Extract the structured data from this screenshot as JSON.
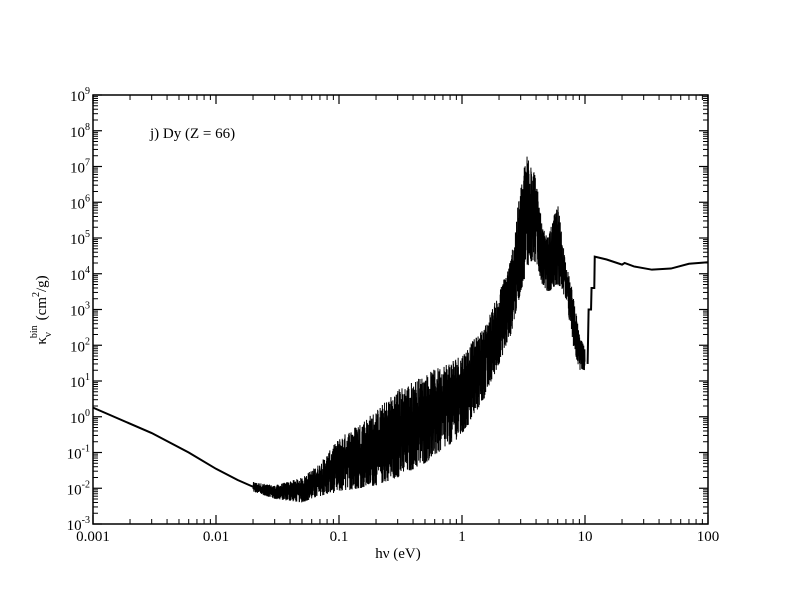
{
  "chart_data": {
    "type": "line",
    "annotation": "j) Dy (Z = 66)",
    "xlabel": "hν (eV)",
    "ylabel_main": "κ",
    "ylabel_sub": "ν",
    "ylabel_sup": "bin",
    "ylabel_unit_pre": "(cm",
    "ylabel_unit_sup": "2",
    "ylabel_unit_post": "/g)",
    "x_scale": "log",
    "y_scale": "log",
    "xlim": [
      0.001,
      100
    ],
    "ylim": [
      0.001,
      1000000000
    ],
    "grid": false,
    "x_ticks": [
      {
        "value": 0.001,
        "label": "0.001"
      },
      {
        "value": 0.01,
        "label": "0.01"
      },
      {
        "value": 0.1,
        "label": "0.1"
      },
      {
        "value": 1,
        "label": "1"
      },
      {
        "value": 10,
        "label": "10"
      },
      {
        "value": 100,
        "label": "100"
      }
    ],
    "y_ticks": [
      {
        "value": 0.001,
        "base": "10",
        "exp": "-3"
      },
      {
        "value": 0.01,
        "base": "10",
        "exp": "-2"
      },
      {
        "value": 0.1,
        "base": "10",
        "exp": "-1"
      },
      {
        "value": 1,
        "base": "10",
        "exp": "0"
      },
      {
        "value": 10,
        "base": "10",
        "exp": "1"
      },
      {
        "value": 100,
        "base": "10",
        "exp": "2"
      },
      {
        "value": 1000,
        "base": "10",
        "exp": "3"
      },
      {
        "value": 10000,
        "base": "10",
        "exp": "4"
      },
      {
        "value": 100000,
        "base": "10",
        "exp": "5"
      },
      {
        "value": 1000000,
        "base": "10",
        "exp": "6"
      },
      {
        "value": 10000000,
        "base": "10",
        "exp": "7"
      },
      {
        "value": 100000000,
        "base": "10",
        "exp": "8"
      },
      {
        "value": 1000000000,
        "base": "10",
        "exp": "9"
      }
    ],
    "series": [
      {
        "color": "#000000",
        "smooth_low": [
          [
            0.001,
            1.8
          ],
          [
            0.003,
            0.35
          ],
          [
            0.006,
            0.1
          ],
          [
            0.01,
            0.035
          ],
          [
            0.015,
            0.017
          ],
          [
            0.02,
            0.011
          ]
        ],
        "noisy_envelope": [
          {
            "x": 0.02,
            "low": 0.008,
            "high": 0.015
          },
          {
            "x": 0.03,
            "low": 0.005,
            "high": 0.012
          },
          {
            "x": 0.05,
            "low": 0.004,
            "high": 0.02
          },
          {
            "x": 0.07,
            "low": 0.006,
            "high": 0.05
          },
          {
            "x": 0.1,
            "low": 0.008,
            "high": 0.25
          },
          {
            "x": 0.2,
            "low": 0.012,
            "high": 1.5
          },
          {
            "x": 0.3,
            "low": 0.02,
            "high": 6
          },
          {
            "x": 0.5,
            "low": 0.05,
            "high": 15
          },
          {
            "x": 1,
            "low": 0.3,
            "high": 60
          },
          {
            "x": 1.5,
            "low": 3,
            "high": 300
          },
          {
            "x": 2,
            "low": 30,
            "high": 3000
          },
          {
            "x": 2.5,
            "low": 200,
            "high": 30000
          },
          {
            "x": 3,
            "low": 3000,
            "high": 3000000
          },
          {
            "x": 3.5,
            "low": 20000,
            "high": 50000000
          },
          {
            "x": 4,
            "low": 20000,
            "high": 5000000
          },
          {
            "x": 4.5,
            "low": 5000,
            "high": 200000
          },
          {
            "x": 5,
            "low": 3000,
            "high": 100000
          },
          {
            "x": 6,
            "low": 5000,
            "high": 1000000
          },
          {
            "x": 7,
            "low": 2000,
            "high": 20000
          },
          {
            "x": 8,
            "low": 100,
            "high": 3000
          },
          {
            "x": 9,
            "low": 20,
            "high": 200
          },
          {
            "x": 10,
            "low": 20,
            "high": 80
          }
        ],
        "smooth_high": [
          [
            10.5,
            30
          ],
          [
            10.7,
            1000
          ],
          [
            11.2,
            1000
          ],
          [
            11.3,
            4000
          ],
          [
            11.9,
            4000
          ],
          [
            12.0,
            30000
          ],
          [
            15,
            25000
          ],
          [
            20,
            18000
          ],
          [
            21,
            20000
          ],
          [
            25,
            16000
          ],
          [
            35,
            13000
          ],
          [
            50,
            14000
          ],
          [
            70,
            19000
          ],
          [
            100,
            21000
          ]
        ]
      }
    ]
  }
}
